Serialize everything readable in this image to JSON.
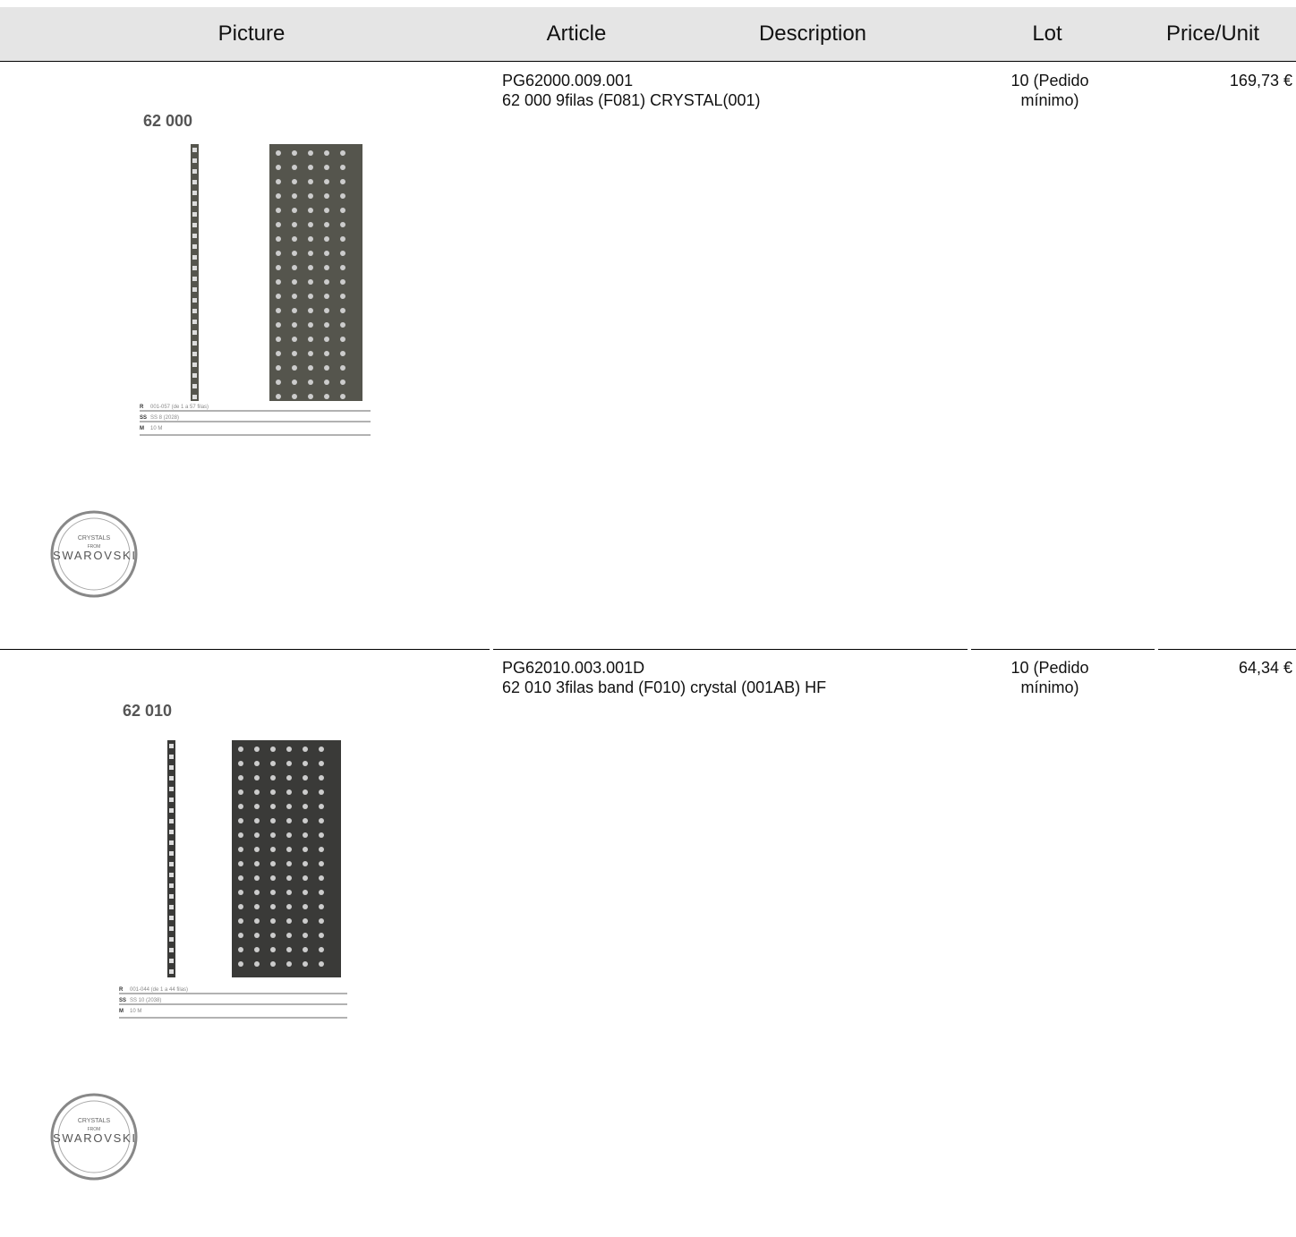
{
  "header": {
    "columns": [
      "Picture",
      "Article",
      "Description",
      "Lot",
      "Price/Unit"
    ]
  },
  "rows": [
    {
      "article": "PG62000.009.001",
      "description": "62 000 9filas (F081) CRYSTAL(001)",
      "lot": "10 (Pedido mínimo)",
      "price": "169,73 €",
      "picture": {
        "model": "62 000",
        "specs": [
          "R",
          "001-057 (de 1 a 57 filas)",
          "SS",
          "SS 8 (2028)",
          "M",
          "10 M"
        ],
        "logo": [
          "CRYSTALS",
          "FROM",
          "SWAROVSKI"
        ]
      }
    },
    {
      "article": "PG62010.003.001D",
      "description": "62 010 3filas band (F010) crystal (001AB) HF",
      "lot": "10 (Pedido mínimo)",
      "price": "64,34 €",
      "picture": {
        "model": "62 010",
        "specs": [
          "R",
          "001-044 (de 1 a 44 filas)",
          "SS",
          "SS 10 (2038)",
          "M",
          "10 M"
        ],
        "logo": [
          "CRYSTALS",
          "FROM",
          "SWAROVSKI"
        ]
      }
    }
  ]
}
